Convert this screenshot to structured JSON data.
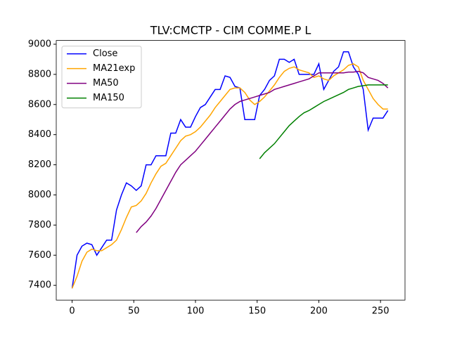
{
  "chart_data": {
    "type": "line",
    "title": "TLV:CMCTP - CIM COMME.P L",
    "x": [
      0,
      4,
      8,
      12,
      16,
      20,
      24,
      28,
      32,
      36,
      40,
      44,
      48,
      52,
      56,
      60,
      64,
      68,
      72,
      76,
      80,
      84,
      88,
      92,
      96,
      100,
      104,
      108,
      112,
      116,
      120,
      124,
      128,
      132,
      136,
      140,
      144,
      148,
      152,
      156,
      160,
      164,
      168,
      172,
      176,
      180,
      184,
      188,
      192,
      196,
      200,
      204,
      208,
      212,
      216,
      220,
      224,
      228,
      232,
      236,
      240,
      244,
      248,
      252,
      256
    ],
    "series": [
      {
        "name": "Close",
        "color": "#0000ff",
        "values": [
          7380,
          7600,
          7660,
          7680,
          7670,
          7600,
          7650,
          7700,
          7700,
          7900,
          8000,
          8080,
          8060,
          8030,
          8060,
          8200,
          8200,
          8260,
          8260,
          8260,
          8410,
          8410,
          8500,
          8450,
          8450,
          8520,
          8580,
          8600,
          8650,
          8700,
          8700,
          8790,
          8780,
          8720,
          8710,
          8500,
          8500,
          8500,
          8660,
          8700,
          8760,
          8790,
          8900,
          8900,
          8880,
          8900,
          8800,
          8800,
          8800,
          8800,
          8870,
          8700,
          8760,
          8820,
          8850,
          8950,
          8950,
          8850,
          8800,
          8700,
          8430,
          8510,
          8510,
          8510,
          8560
        ]
      },
      {
        "name": "MA21exp",
        "color": "#ffa500",
        "values": [
          7380,
          7460,
          7560,
          7620,
          7640,
          7630,
          7630,
          7650,
          7670,
          7700,
          7770,
          7850,
          7920,
          7930,
          7960,
          8010,
          8080,
          8140,
          8190,
          8210,
          8260,
          8310,
          8360,
          8390,
          8400,
          8420,
          8450,
          8490,
          8530,
          8580,
          8620,
          8660,
          8700,
          8710,
          8710,
          8680,
          8630,
          8600,
          8620,
          8650,
          8690,
          8730,
          8780,
          8820,
          8840,
          8850,
          8830,
          8820,
          8810,
          8780,
          8790,
          8770,
          8760,
          8790,
          8810,
          8830,
          8860,
          8870,
          8850,
          8760,
          8700,
          8640,
          8600,
          8570,
          8570
        ]
      },
      {
        "name": "MA50",
        "color": "#800080",
        "values": [
          null,
          null,
          null,
          null,
          null,
          null,
          null,
          null,
          null,
          null,
          null,
          null,
          null,
          7750,
          7790,
          7820,
          7860,
          7910,
          7970,
          8030,
          8090,
          8150,
          8200,
          8230,
          8260,
          8290,
          8330,
          8370,
          8410,
          8450,
          8490,
          8530,
          8570,
          8600,
          8620,
          8630,
          8640,
          8650,
          8660,
          8670,
          8680,
          8700,
          8710,
          8720,
          8730,
          8740,
          8750,
          8760,
          8770,
          8790,
          8810,
          8810,
          8810,
          8810,
          8810,
          8810,
          8815,
          8815,
          8820,
          8810,
          8780,
          8770,
          8760,
          8740,
          8710
        ]
      },
      {
        "name": "MA150",
        "color": "#008000",
        "values": [
          null,
          null,
          null,
          null,
          null,
          null,
          null,
          null,
          null,
          null,
          null,
          null,
          null,
          null,
          null,
          null,
          null,
          null,
          null,
          null,
          null,
          null,
          null,
          null,
          null,
          null,
          null,
          null,
          null,
          null,
          null,
          null,
          null,
          null,
          null,
          null,
          null,
          null,
          8240,
          8280,
          8310,
          8340,
          8380,
          8420,
          8460,
          8490,
          8520,
          8545,
          8560,
          8580,
          8600,
          8620,
          8635,
          8650,
          8665,
          8680,
          8700,
          8710,
          8720,
          8725,
          8730,
          8730,
          8730,
          8730,
          8730
        ]
      }
    ],
    "xlim": [
      -12.85,
      269.85
    ],
    "ylim": [
      7302,
      9025
    ],
    "xticks": [
      0,
      50,
      100,
      150,
      200,
      250
    ],
    "yticks": [
      7400,
      7600,
      7800,
      8000,
      8200,
      8400,
      8600,
      8800,
      9000
    ],
    "legend": "upper left"
  }
}
